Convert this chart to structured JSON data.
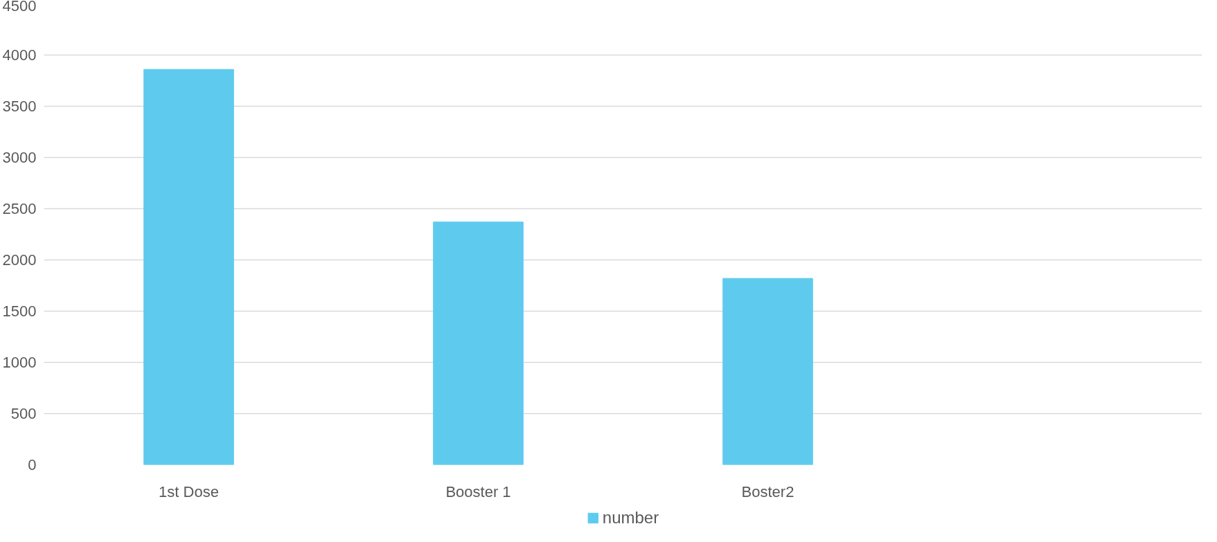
{
  "chart_data": {
    "type": "bar",
    "categories": [
      "1st Dose",
      "Booster 1",
      "Boster2",
      null
    ],
    "series": [
      {
        "name": "number",
        "color": "#5ecbee",
        "values": [
          3860,
          2370,
          1820,
          null
        ]
      }
    ],
    "ylim": [
      0,
      4500
    ],
    "yticks": [
      0,
      500,
      1000,
      1500,
      2000,
      2500,
      3000,
      3500,
      4000,
      4500
    ],
    "grid": "y",
    "legend": "bottom"
  }
}
